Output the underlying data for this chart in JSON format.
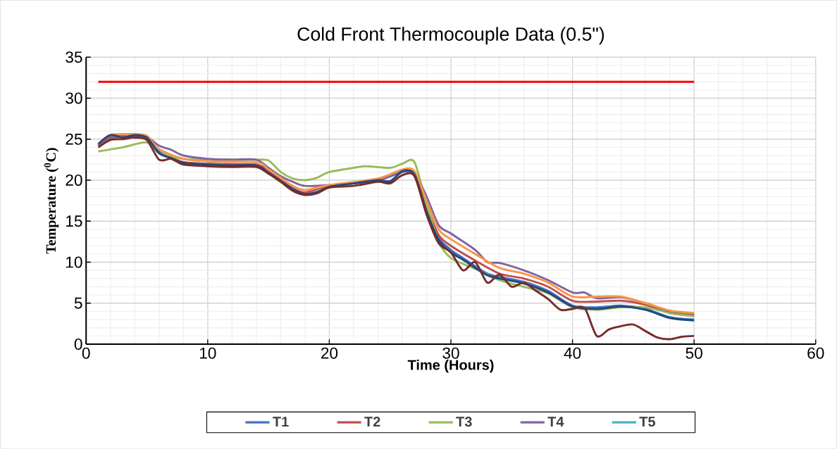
{
  "chart_data": {
    "type": "line",
    "title": "Cold Front Thermocouple Data (0.5\")",
    "xlabel": "Time (Hours)",
    "ylabel": "Temperature ($^{0}$C)",
    "xlim": [
      0,
      60
    ],
    "xticks": [
      0,
      10,
      20,
      30,
      40,
      50,
      60
    ],
    "ylim": [
      0,
      35
    ],
    "yticks": [
      0,
      5,
      10,
      15,
      20,
      25,
      30,
      35
    ],
    "grid": true,
    "legend": "bottom",
    "line_style": "solid",
    "marker": "none",
    "series": [
      {
        "name": "T1",
        "color": "#4472c4",
        "x": [
          5,
          6,
          7,
          8,
          10,
          12,
          14,
          15,
          16,
          17,
          18,
          19,
          20,
          22,
          24,
          25,
          26,
          27,
          28,
          29,
          30,
          31,
          32,
          33,
          34,
          36,
          38,
          40,
          42,
          44,
          46,
          48,
          50
        ],
        "values": [
          25.2,
          23.5,
          22.8,
          22.2,
          22.0,
          21.9,
          21.9,
          21.0,
          20.0,
          19.0,
          18.4,
          18.6,
          19.2,
          19.6,
          20.0,
          19.9,
          21.0,
          20.8,
          16.5,
          13.0,
          11.5,
          10.5,
          9.5,
          8.6,
          8.2,
          7.6,
          6.5,
          4.7,
          4.5,
          4.7,
          4.3,
          3.3,
          3.0
        ]
      },
      {
        "name": "T2",
        "color": "#c0504d",
        "x": [
          1,
          2,
          4,
          5,
          6,
          8,
          10,
          14,
          15,
          16,
          17,
          18,
          20,
          24,
          26,
          27,
          28,
          29,
          30,
          32,
          34,
          36,
          38,
          40,
          42,
          44,
          46,
          48,
          50
        ],
        "values": [
          24.2,
          25.1,
          25.3,
          25.1,
          23.3,
          22.2,
          22.0,
          21.9,
          21.0,
          20.0,
          19.0,
          18.5,
          19.3,
          20.0,
          21.0,
          20.8,
          16.8,
          13.3,
          12.0,
          10.2,
          8.6,
          8.0,
          7.0,
          5.3,
          5.2,
          5.3,
          4.8,
          3.8,
          3.5
        ]
      },
      {
        "name": "T3",
        "color": "#9bbb59",
        "x": [
          1,
          3,
          5,
          6,
          8,
          10,
          12,
          14,
          15,
          16,
          17,
          18,
          19,
          20,
          22,
          23,
          25,
          26,
          27,
          28,
          29,
          30,
          32,
          34,
          36,
          38,
          40,
          42,
          44,
          46,
          48,
          50
        ],
        "values": [
          23.5,
          24.0,
          24.6,
          23.3,
          22.6,
          22.5,
          22.5,
          22.5,
          22.4,
          21.0,
          20.2,
          20.0,
          20.3,
          21.0,
          21.5,
          21.7,
          21.5,
          22.0,
          22.2,
          17.0,
          12.5,
          10.5,
          9.2,
          7.8,
          7.0,
          6.2,
          4.5,
          4.2,
          4.5,
          4.5,
          3.8,
          3.4
        ]
      },
      {
        "name": "T4",
        "color": "#8064a2",
        "x": [
          1,
          2,
          4,
          5,
          6,
          7,
          8,
          10,
          12,
          14,
          15,
          16,
          17,
          18,
          20,
          24,
          26,
          27,
          28,
          29,
          30,
          32,
          33,
          34,
          36,
          38,
          40,
          41,
          42,
          44,
          46,
          48,
          50
        ],
        "values": [
          24.2,
          25.3,
          25.6,
          25.3,
          24.2,
          23.7,
          23.0,
          22.6,
          22.5,
          22.5,
          21.5,
          20.5,
          19.8,
          19.3,
          19.4,
          20.0,
          21.0,
          20.8,
          18.0,
          14.5,
          13.5,
          11.5,
          10.0,
          9.9,
          9.0,
          7.8,
          6.3,
          6.3,
          5.6,
          5.7,
          5.0,
          4.0,
          3.7
        ]
      },
      {
        "name": "T5",
        "color": "#4bacc6"
      },
      {
        "color": "#f79646",
        "x": [
          1,
          2,
          4,
          5,
          6,
          8,
          10,
          14,
          15,
          16,
          17,
          18,
          20,
          24,
          26,
          27,
          28,
          29,
          30,
          32,
          34,
          36,
          38,
          40,
          42,
          44,
          46,
          48,
          50
        ],
        "values": [
          24.4,
          25.5,
          25.6,
          25.4,
          23.8,
          22.6,
          22.3,
          22.2,
          21.3,
          20.3,
          19.3,
          18.8,
          19.4,
          20.2,
          21.3,
          21.1,
          17.5,
          14.0,
          12.8,
          11.0,
          9.3,
          8.6,
          7.5,
          5.8,
          5.8,
          5.8,
          5.0,
          4.1,
          3.8
        ]
      },
      {
        "color": "#1f497d",
        "x": [
          1,
          2,
          3,
          4,
          5,
          6,
          7,
          8,
          10,
          12,
          14,
          15,
          16,
          17,
          18,
          19,
          20,
          22,
          24,
          25,
          26,
          27,
          28,
          29,
          30,
          31,
          32,
          33,
          34,
          36,
          38,
          40,
          42,
          44,
          46,
          48,
          50
        ],
        "values": [
          24.4,
          25.5,
          25.2,
          25.5,
          25.2,
          23.3,
          22.7,
          22.1,
          21.9,
          21.8,
          21.8,
          20.9,
          19.9,
          18.9,
          18.3,
          18.5,
          19.2,
          19.6,
          20.0,
          19.8,
          21.1,
          20.7,
          16.2,
          12.7,
          11.2,
          10.3,
          9.3,
          8.4,
          8.0,
          7.4,
          6.3,
          4.6,
          4.3,
          4.6,
          4.2,
          3.2,
          2.9
        ]
      },
      {
        "color": "#772c2a",
        "x": [
          1,
          2,
          3,
          4,
          5,
          6,
          7,
          8,
          10,
          12,
          14,
          15,
          16,
          17,
          18,
          19,
          20,
          22,
          24,
          25,
          26,
          27,
          28,
          29,
          30,
          31,
          32,
          33,
          34,
          35,
          36,
          37,
          38,
          39,
          40,
          41,
          42,
          43,
          44,
          45,
          46,
          47,
          48,
          49,
          50
        ],
        "values": [
          24.0,
          24.9,
          25.0,
          25.2,
          24.9,
          22.5,
          22.6,
          21.9,
          21.7,
          21.6,
          21.6,
          20.8,
          19.8,
          18.7,
          18.2,
          18.4,
          19.1,
          19.3,
          19.8,
          19.6,
          20.6,
          20.5,
          15.8,
          12.3,
          11.2,
          9.0,
          10.0,
          7.5,
          8.5,
          7.0,
          7.5,
          6.5,
          5.5,
          4.2,
          4.3,
          4.4,
          1.0,
          1.8,
          2.2,
          2.4,
          1.6,
          0.8,
          0.6,
          0.9,
          1.0
        ]
      },
      {
        "color": "#ff0000",
        "x": [
          1,
          50
        ],
        "values": [
          32,
          32
        ]
      }
    ]
  }
}
